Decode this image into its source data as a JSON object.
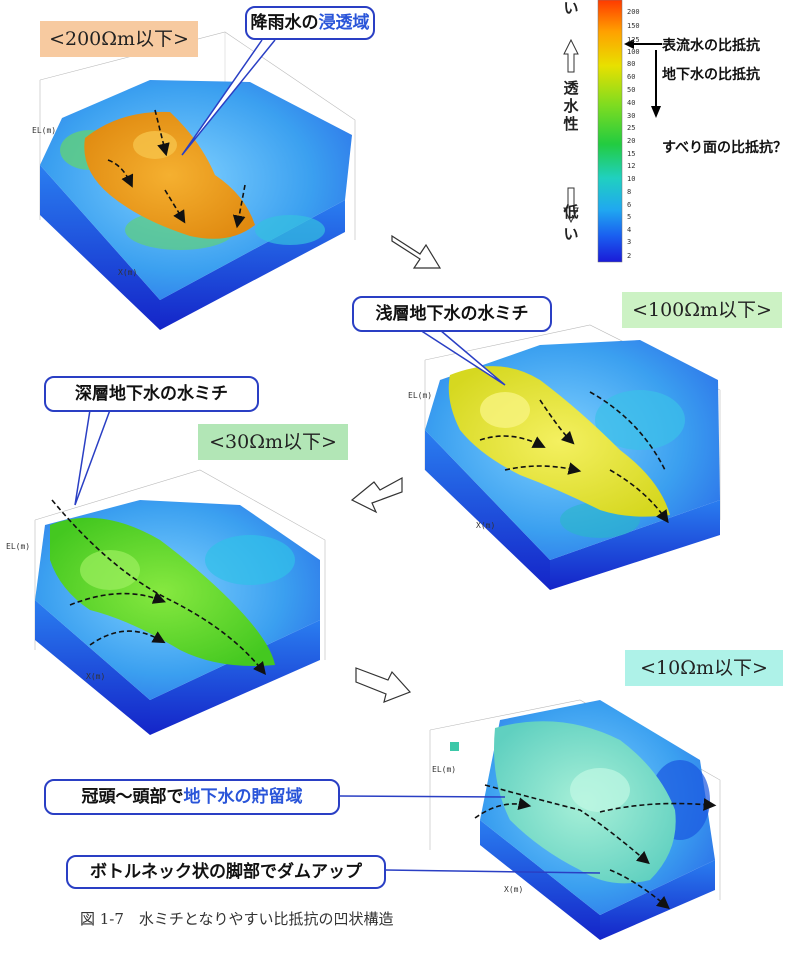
{
  "range_labels": {
    "r200": "<200Ωm以下>",
    "r100": "<100Ωm以下>",
    "r30": "<30Ωm以下>",
    "r10": "<10Ωm以下>"
  },
  "callouts": {
    "infiltration_prefix": "降雨水の",
    "infiltration_highlight": "浸透域",
    "shallow": "浅層地下水の水ミチ",
    "deep": "深層地下水の水ミチ",
    "storage_prefix": "冠頭～頭部で",
    "storage_highlight": "地下水の貯留域",
    "bottleneck": "ボトルネック状の脚部でダムアップ"
  },
  "legend": {
    "top_char": "い",
    "permeability": [
      "透",
      "水",
      "性"
    ],
    "low": [
      "低",
      "い"
    ],
    "surface_water": "表流水の比抵抗",
    "groundwater": "地下水の比抵抗",
    "slip_surface": "すべり面の比抵抗？",
    "scale_ticks": [
      "200",
      "150",
      "125",
      "100",
      "80",
      "60",
      "50",
      "40",
      "30",
      "25",
      "20",
      "15",
      "12",
      "10",
      "8",
      "6",
      "5",
      "4",
      "3",
      "2"
    ]
  },
  "axis_labels": {
    "el": "EL(m)",
    "x": "X(m)"
  },
  "caption": "図 1-7　水ミチとなりやすい比抵抗の凹状構造",
  "colors": {
    "range200_bg": "#f7caa0",
    "range100_bg": "#ccf2c4",
    "range30_bg": "#b2e6b6",
    "range10_bg": "#aef2e8",
    "callout_border": "#2a3fc4",
    "highlight_text": "#2a55d9"
  }
}
